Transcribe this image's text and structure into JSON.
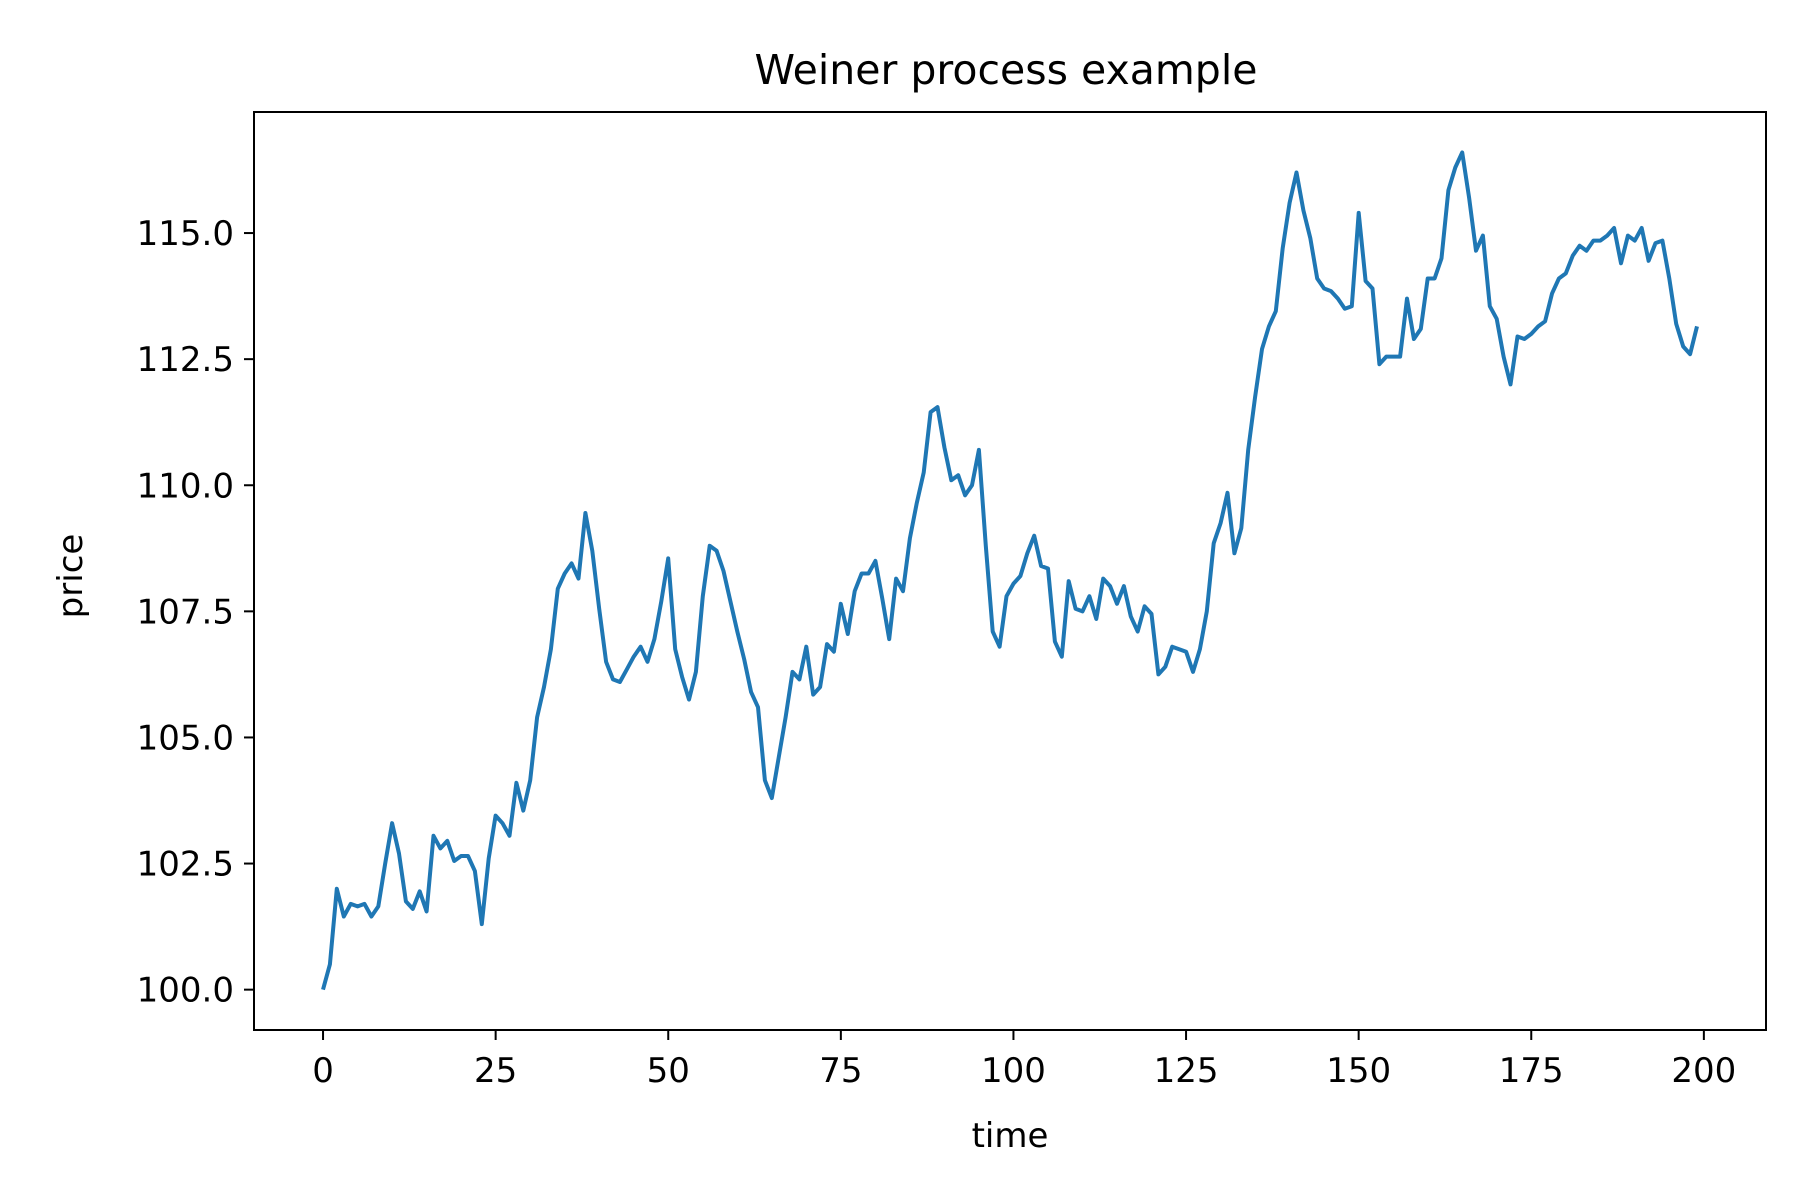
{
  "chart_data": {
    "type": "line",
    "title": "Weiner process example",
    "xlabel": "time",
    "ylabel": "price",
    "xlim": [
      -10,
      209
    ],
    "ylim": [
      99.2,
      117.4
    ],
    "xticks": [
      {
        "value": 0,
        "label": "0"
      },
      {
        "value": 25,
        "label": "25"
      },
      {
        "value": 50,
        "label": "50"
      },
      {
        "value": 75,
        "label": "75"
      },
      {
        "value": 100,
        "label": "100"
      },
      {
        "value": 125,
        "label": "125"
      },
      {
        "value": 150,
        "label": "150"
      },
      {
        "value": 175,
        "label": "175"
      },
      {
        "value": 200,
        "label": "200"
      }
    ],
    "yticks": [
      {
        "value": 100.0,
        "label": "100.0"
      },
      {
        "value": 102.5,
        "label": "102.5"
      },
      {
        "value": 105.0,
        "label": "105.0"
      },
      {
        "value": 107.5,
        "label": "107.5"
      },
      {
        "value": 110.0,
        "label": "110.0"
      },
      {
        "value": 112.5,
        "label": "112.5"
      },
      {
        "value": 115.0,
        "label": "115.0"
      }
    ],
    "grid": false,
    "series": [
      {
        "color": "#1f77b4",
        "x_start": 0,
        "x_step": 1,
        "values": [
          100.0,
          100.5,
          102.0,
          101.45,
          101.7,
          101.65,
          101.7,
          101.45,
          101.65,
          102.5,
          103.3,
          102.7,
          101.75,
          101.6,
          101.95,
          101.55,
          103.05,
          102.8,
          102.95,
          102.55,
          102.65,
          102.65,
          102.35,
          101.3,
          102.6,
          103.45,
          103.3,
          103.05,
          104.1,
          103.55,
          104.15,
          105.4,
          106.0,
          106.75,
          107.95,
          108.25,
          108.45,
          108.15,
          109.45,
          108.7,
          107.55,
          106.5,
          106.15,
          106.1,
          106.35,
          106.6,
          106.8,
          106.5,
          106.95,
          107.7,
          108.55,
          106.75,
          106.2,
          105.75,
          106.3,
          107.8,
          108.8,
          108.7,
          108.3,
          107.7,
          107.1,
          106.55,
          105.9,
          105.6,
          104.15,
          103.8,
          104.6,
          105.4,
          106.3,
          106.15,
          106.8,
          105.85,
          106.0,
          106.85,
          106.7,
          107.65,
          107.05,
          107.9,
          108.25,
          108.25,
          108.5,
          107.75,
          106.95,
          108.15,
          107.9,
          108.95,
          109.65,
          110.25,
          111.45,
          111.55,
          110.75,
          110.1,
          110.2,
          109.8,
          110.0,
          110.7,
          108.8,
          107.1,
          106.8,
          107.8,
          108.05,
          108.2,
          108.65,
          109.0,
          108.4,
          108.35,
          106.9,
          106.6,
          108.1,
          107.55,
          107.5,
          107.8,
          107.35,
          108.15,
          108.0,
          107.65,
          108.0,
          107.4,
          107.1,
          107.6,
          107.45,
          106.25,
          106.4,
          106.8,
          106.75,
          106.7,
          106.3,
          106.75,
          107.5,
          108.85,
          109.25,
          109.85,
          108.65,
          109.15,
          110.7,
          111.75,
          112.7,
          113.15,
          113.45,
          114.7,
          115.6,
          116.2,
          115.45,
          114.9,
          114.1,
          113.9,
          113.85,
          113.7,
          113.5,
          113.55,
          115.4,
          114.05,
          113.9,
          112.4,
          112.55,
          112.55,
          112.55,
          113.7,
          112.9,
          113.1,
          114.1,
          114.1,
          114.5,
          115.85,
          116.3,
          116.6,
          115.7,
          114.65,
          114.95,
          113.55,
          113.3,
          112.55,
          112.0,
          112.95,
          112.9,
          113.0,
          113.15,
          113.25,
          113.8,
          114.1,
          114.2,
          114.55,
          114.75,
          114.65,
          114.85,
          114.85,
          114.95,
          115.1,
          114.4,
          114.95,
          114.85,
          115.1,
          114.45,
          114.8,
          114.85,
          114.1,
          113.2,
          112.75,
          112.6,
          113.15
        ]
      }
    ]
  }
}
